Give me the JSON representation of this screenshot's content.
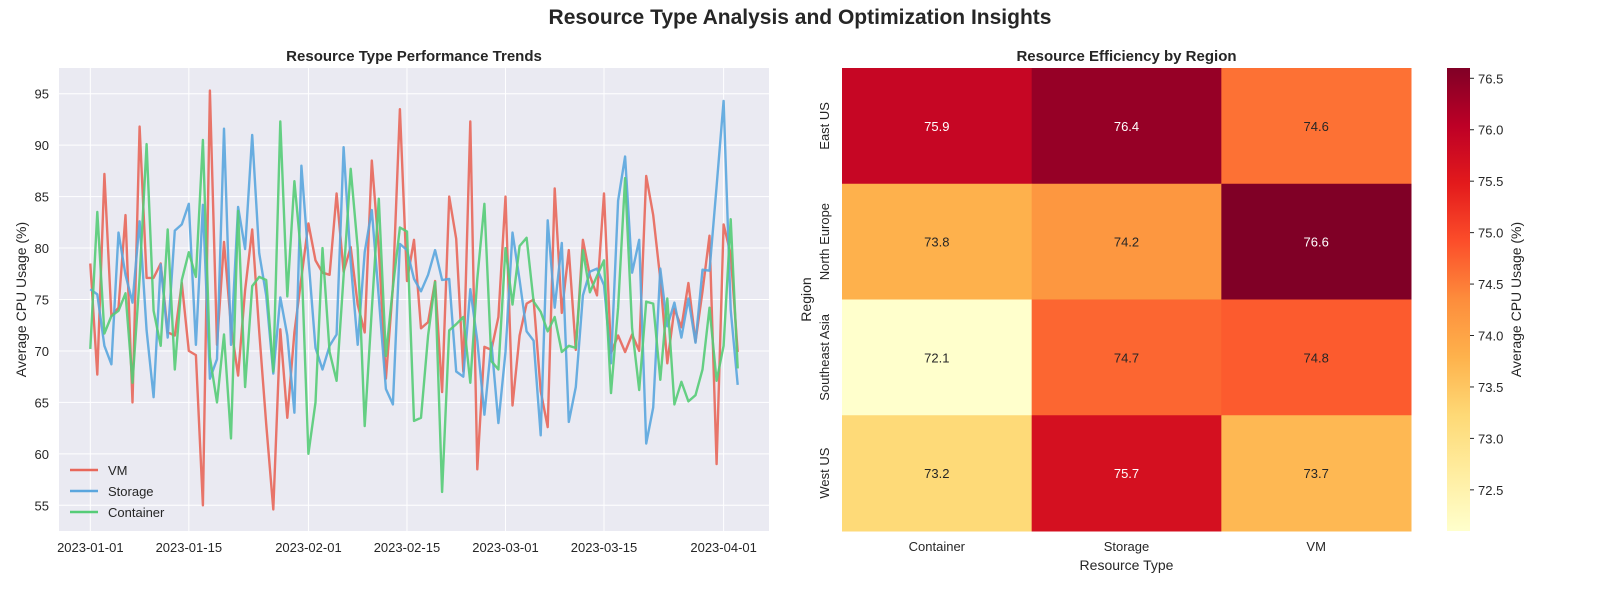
{
  "figure": {
    "title": "Resource Type Analysis and Optimization Insights"
  },
  "chart_data": [
    {
      "type": "line",
      "title": "Resource Type Performance Trends",
      "xlabel": "",
      "ylabel": "Average CPU Usage (%)",
      "x_start": "2023-01-01",
      "x_end": "2023-03-31",
      "x_ticks": [
        "2023-01-01",
        "2023-01-15",
        "2023-02-01",
        "2023-02-15",
        "2023-03-01",
        "2023-03-15",
        "2023-04-01"
      ],
      "y_ticks": [
        55,
        60,
        65,
        70,
        75,
        80,
        85,
        90,
        95
      ],
      "ylim": [
        52.5,
        97.5
      ],
      "grid": true,
      "legend_position": "lower-left",
      "series": [
        {
          "name": "VM",
          "color": "#e8675a",
          "values": [
            78.5,
            67.7,
            87.2,
            73.4,
            74.2,
            83.2,
            65.0,
            91.8,
            77.1,
            77.1,
            78.5,
            71.8,
            71.5,
            76.6,
            70.0,
            69.6,
            55.0,
            95.3,
            70.6,
            80.6,
            72.4,
            67.6,
            75.9,
            81.8,
            71.9,
            62.9,
            54.6,
            72.1,
            63.5,
            71.8,
            77.1,
            82.4,
            78.8,
            77.6,
            77.4,
            85.3,
            77.7,
            80.1,
            74.5,
            71.8,
            88.5,
            79.9,
            67.3,
            76.2,
            93.5,
            76.8,
            80.8,
            72.2,
            72.8,
            76.8,
            66.0,
            85.0,
            80.9,
            68.0,
            92.3,
            58.5,
            70.4,
            70.1,
            73.3,
            85.0,
            64.7,
            71.5,
            74.6,
            75.0,
            66.1,
            62.6,
            85.8,
            73.7,
            79.8,
            70.1,
            80.8,
            77.3,
            75.4,
            85.3,
            69.8,
            71.5,
            69.9,
            71.6,
            70.0,
            87.0,
            83.2,
            77.0,
            68.8,
            74.1,
            72.3,
            76.6,
            70.9,
            75.8,
            81.2,
            59.0,
            82.3,
            79.4,
            69.9
          ]
        },
        {
          "name": "Storage",
          "color": "#5aa6de",
          "values": [
            76.0,
            75.5,
            70.5,
            68.7,
            81.5,
            77.4,
            74.7,
            82.6,
            72.0,
            65.5,
            78.4,
            71.3,
            81.7,
            82.3,
            84.3,
            70.6,
            84.2,
            67.3,
            69.2,
            91.6,
            70.6,
            84.0,
            79.9,
            91.0,
            79.5,
            75.4,
            67.8,
            75.2,
            71.5,
            64.0,
            88.0,
            79.0,
            70.3,
            68.2,
            70.5,
            71.6,
            89.8,
            78.6,
            70.6,
            79.6,
            83.7,
            75.2,
            66.3,
            64.8,
            80.4,
            79.8,
            77.0,
            75.8,
            77.4,
            79.8,
            76.9,
            77.0,
            68.0,
            67.5,
            76.0,
            71.0,
            63.8,
            70.8,
            63.0,
            69.9,
            81.5,
            76.9,
            71.9,
            71.0,
            61.8,
            82.7,
            74.2,
            80.5,
            63.1,
            66.5,
            75.4,
            77.7,
            78.0,
            76.4,
            68.8,
            84.6,
            88.9,
            77.6,
            80.8,
            61.0,
            64.5,
            78.0,
            72.4,
            74.7,
            71.3,
            75.1,
            70.8,
            77.9,
            77.8,
            86.0,
            94.3,
            74.0,
            66.7
          ]
        },
        {
          "name": "Container",
          "color": "#55cc77",
          "values": [
            70.2,
            83.5,
            71.7,
            73.4,
            73.9,
            75.6,
            66.9,
            77.1,
            90.1,
            73.9,
            70.5,
            81.8,
            68.2,
            76.9,
            79.6,
            77.2,
            90.5,
            69.4,
            65.0,
            71.6,
            61.5,
            83.6,
            66.5,
            76.3,
            77.2,
            76.9,
            68.0,
            92.3,
            75.3,
            86.5,
            79.1,
            60.0,
            65.0,
            80.0,
            69.9,
            67.1,
            77.3,
            87.7,
            80.0,
            62.7,
            74.0,
            84.8,
            69.5,
            76.2,
            82.0,
            81.6,
            63.2,
            63.5,
            71.5,
            76.7,
            56.3,
            72.0,
            72.6,
            73.3,
            66.9,
            77.0,
            84.3,
            69.0,
            68.2,
            80.0,
            74.5,
            80.2,
            81.0,
            74.8,
            73.8,
            71.9,
            73.3,
            69.9,
            70.5,
            70.3,
            79.8,
            75.7,
            77.3,
            78.8,
            65.9,
            74.2,
            86.8,
            72.2,
            66.2,
            74.8,
            74.6,
            67.2,
            75.1,
            64.8,
            67.0,
            65.1,
            65.7,
            68.2,
            74.2,
            67.1,
            70.5,
            82.8,
            68.3
          ]
        }
      ]
    },
    {
      "type": "heatmap",
      "title": "Resource Efficiency by Region",
      "xlabel": "Resource Type",
      "ylabel": "Region",
      "x_categories": [
        "Container",
        "Storage",
        "VM"
      ],
      "y_categories": [
        "East US",
        "North Europe",
        "Southeast Asia",
        "West US"
      ],
      "values": [
        [
          75.9,
          76.4,
          74.6
        ],
        [
          73.8,
          74.2,
          76.6
        ],
        [
          72.1,
          74.7,
          74.8
        ],
        [
          73.2,
          75.7,
          73.7
        ]
      ],
      "colorbar_label": "Average CPU Usage (%)",
      "colorbar_ticks": [
        72.5,
        73.0,
        73.5,
        74.0,
        74.5,
        75.0,
        75.5,
        76.0,
        76.5
      ],
      "vmin": 72.1,
      "vmax": 76.6,
      "colormap": "YlOrRd"
    }
  ]
}
